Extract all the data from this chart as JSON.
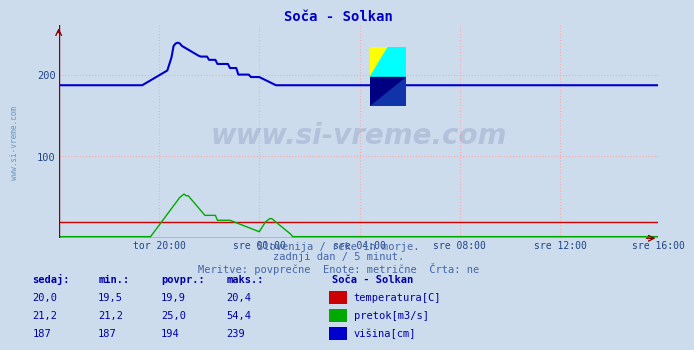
{
  "title": "Soča - Solkan",
  "title_color": "#0000cc",
  "bg_color": "#ccdcec",
  "plot_bg_color": "#ccdcec",
  "grid_color": "#ffaaaa",
  "grid_linestyle": ":",
  "ylim": [
    0,
    260
  ],
  "yticks": [
    100,
    200
  ],
  "xtick_labels": [
    "tor 20:00",
    "sre 00:00",
    "sre 04:00",
    "sre 08:00",
    "sre 12:00",
    "sre 16:00"
  ],
  "n_points": 288,
  "temp_color": "#cc0000",
  "pretok_color": "#00aa00",
  "visina_color": "#0000cc",
  "watermark_text": "www.si-vreme.com",
  "watermark_color": "#000066",
  "watermark_alpha": 0.12,
  "subtitle1": "Slovenija / reke in morje.",
  "subtitle2": "zadnji dan / 5 minut.",
  "subtitle3": "Meritve: povprečne  Enote: metrične  Črta: ne",
  "subtitle_color": "#4466aa",
  "table_header": [
    "sedaj:",
    "min.:",
    "povpr.:",
    "maks.:"
  ],
  "table_label": "Soča - Solkan",
  "temp_row": [
    "20,0",
    "19,5",
    "19,9",
    "20,4"
  ],
  "pretok_row": [
    "21,2",
    "21,2",
    "25,0",
    "54,4"
  ],
  "visina_row": [
    "187",
    "187",
    "194",
    "239"
  ],
  "legend_items": [
    "temperatura[C]",
    "pretok[m3/s]",
    "višina[cm]"
  ],
  "legend_colors": [
    "#cc0000",
    "#00aa00",
    "#0000cc"
  ],
  "axis_arrow_color": "#880000",
  "tick_color": "#224488",
  "left_watermark": "www.si-vreme.com"
}
